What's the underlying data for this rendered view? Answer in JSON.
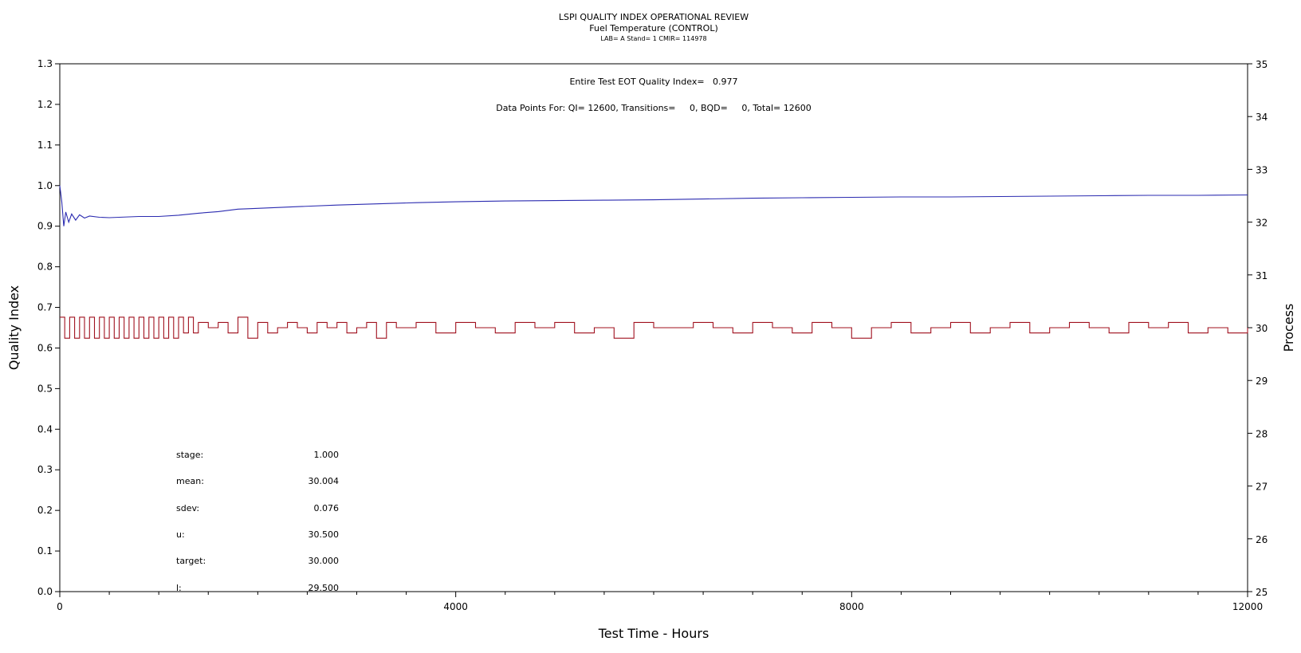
{
  "header": {
    "title": "LSPI QUALITY INDEX OPERATIONAL REVIEW",
    "subtitle": "Fuel Temperature (CONTROL)",
    "subsubtitle": "LAB= A Stand= 1 CMIR= 114978"
  },
  "annotations": {
    "qi_line": "Entire Test EOT Quality Index=   0.977",
    "points_line": "Data Points For: QI= 12600, Transitions=     0, BQD=     0, Total= 12600"
  },
  "stats": [
    {
      "label": "stage:",
      "value": "1.000"
    },
    {
      "label": "mean:",
      "value": "30.004"
    },
    {
      "label": "sdev:",
      "value": "0.076"
    },
    {
      "label": "u:",
      "value": "30.500"
    },
    {
      "label": "target:",
      "value": "30.000"
    },
    {
      "label": "l:",
      "value": "29.500"
    }
  ],
  "colors": {
    "quality_index": "#2b2bb0",
    "process": "#a0101e",
    "axis": "#000000"
  },
  "chart_data": {
    "type": "line",
    "title": "LSPI QUALITY INDEX OPERATIONAL REVIEW",
    "xlabel": "Test Time - Hours",
    "ylabel": "Quality Index",
    "y2label": "Process",
    "xlim": [
      0,
      12000
    ],
    "ylim": [
      0.0,
      1.3
    ],
    "y2lim": [
      25,
      35
    ],
    "xticks": [
      "0",
      "4000",
      "8000",
      "12000"
    ],
    "yticks": [
      "0.0",
      "0.1",
      "0.2",
      "0.3",
      "0.4",
      "0.5",
      "0.6",
      "0.7",
      "0.8",
      "0.9",
      "1.0",
      "1.1",
      "1.2",
      "1.3"
    ],
    "y2ticks": [
      "25",
      "26",
      "27",
      "28",
      "29",
      "30",
      "31",
      "32",
      "33",
      "34",
      "35"
    ],
    "series": [
      {
        "axis": "left",
        "x": [
          0,
          20,
          40,
          60,
          90,
          120,
          160,
          200,
          250,
          300,
          400,
          500,
          600,
          700,
          800,
          1000,
          1200,
          1400,
          1600,
          1800,
          2000,
          2400,
          2800,
          3200,
          3600,
          4000,
          4500,
          5000,
          5500,
          6000,
          6500,
          7000,
          7500,
          8000,
          8500,
          9000,
          9500,
          10000,
          10500,
          11000,
          11500,
          12000
        ],
        "values": [
          1.0,
          0.96,
          0.9,
          0.935,
          0.91,
          0.93,
          0.915,
          0.928,
          0.92,
          0.925,
          0.922,
          0.921,
          0.922,
          0.923,
          0.924,
          0.924,
          0.927,
          0.932,
          0.936,
          0.942,
          0.944,
          0.948,
          0.952,
          0.955,
          0.958,
          0.96,
          0.962,
          0.963,
          0.964,
          0.965,
          0.967,
          0.969,
          0.97,
          0.971,
          0.972,
          0.972,
          0.973,
          0.974,
          0.975,
          0.976,
          0.976,
          0.977
        ]
      },
      {
        "axis": "right",
        "x": [
          0,
          50,
          100,
          150,
          200,
          250,
          300,
          350,
          400,
          450,
          500,
          550,
          600,
          650,
          700,
          750,
          800,
          850,
          900,
          950,
          1000,
          1050,
          1100,
          1150,
          1200,
          1250,
          1300,
          1350,
          1400,
          1500,
          1600,
          1700,
          1800,
          1900,
          2000,
          2100,
          2200,
          2300,
          2400,
          2500,
          2600,
          2700,
          2800,
          2900,
          3000,
          3100,
          3200,
          3300,
          3400,
          3500,
          3600,
          3800,
          4000,
          4200,
          4400,
          4600,
          4800,
          5000,
          5200,
          5400,
          5600,
          5800,
          6000,
          6200,
          6400,
          6600,
          6800,
          7000,
          7200,
          7400,
          7600,
          7800,
          8000,
          8200,
          8400,
          8600,
          8800,
          9000,
          9200,
          9400,
          9600,
          9800,
          10000,
          10200,
          10400,
          10600,
          10800,
          11000,
          11200,
          11400,
          11600,
          11800,
          12000
        ],
        "values": [
          30.2,
          29.8,
          30.2,
          29.8,
          30.2,
          29.8,
          30.2,
          29.8,
          30.2,
          29.8,
          30.2,
          29.8,
          30.2,
          29.8,
          30.2,
          29.8,
          30.2,
          29.8,
          30.2,
          29.8,
          30.2,
          29.8,
          30.2,
          29.8,
          30.2,
          29.9,
          30.2,
          29.9,
          30.1,
          30.0,
          30.1,
          29.9,
          30.2,
          29.8,
          30.1,
          29.9,
          30.0,
          30.1,
          30.0,
          29.9,
          30.1,
          30.0,
          30.1,
          29.9,
          30.0,
          30.1,
          29.8,
          30.1,
          30.0,
          30.0,
          30.1,
          29.9,
          30.1,
          30.0,
          29.9,
          30.1,
          30.0,
          30.1,
          29.9,
          30.0,
          29.8,
          30.1,
          30.0,
          30.0,
          30.1,
          30.0,
          29.9,
          30.1,
          30.0,
          29.9,
          30.1,
          30.0,
          29.8,
          30.0,
          30.1,
          29.9,
          30.0,
          30.1,
          29.9,
          30.0,
          30.1,
          29.9,
          30.0,
          30.1,
          30.0,
          29.9,
          30.1,
          30.0,
          30.1,
          29.9,
          30.0,
          29.9,
          30.0
        ]
      }
    ]
  }
}
